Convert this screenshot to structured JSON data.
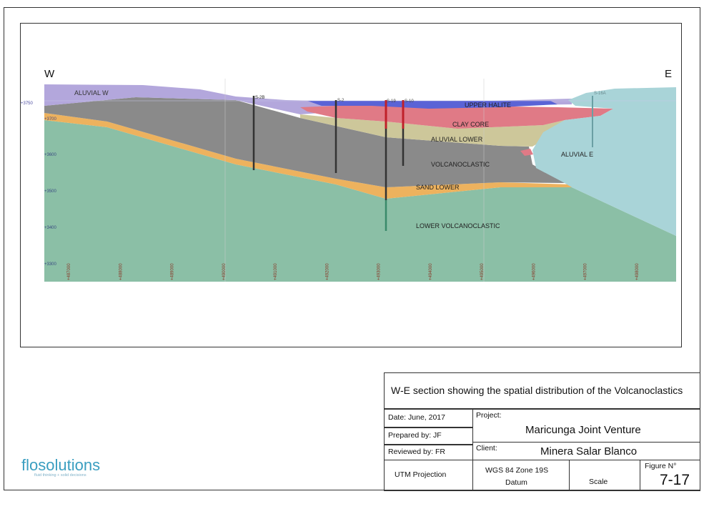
{
  "diagram": {
    "direction_left": "W",
    "direction_right": "E",
    "elevation_labels": [
      "+3750",
      "+3700",
      "+3600",
      "+3500",
      "+3400",
      "+3300"
    ],
    "easting_labels": [
      "+487000",
      "+488000",
      "+489000",
      "+490000",
      "+491000",
      "+492000",
      "+493000",
      "+494000",
      "+495000",
      "+496000",
      "+497000",
      "+498000"
    ],
    "units": [
      {
        "name": "ALUVIAL W",
        "color": "#b3a7dc"
      },
      {
        "name": "UPPER HALITE",
        "color": "#5a63d6"
      },
      {
        "name": "CLAY CORE",
        "color": "#e07a86"
      },
      {
        "name": "ALUVIAL LOWER",
        "color": "#cdc79a"
      },
      {
        "name": "VOLCANOCLASTIC",
        "color": "#8a8a8a"
      },
      {
        "name": "SAND LOWER",
        "color": "#edb25e"
      },
      {
        "name": "LOWER VOLCANOCLASTIC",
        "color": "#8bbfa6"
      },
      {
        "name": "ALUVIAL E",
        "color": "#a9d4d8"
      }
    ],
    "boreholes": [
      "S-2B",
      "S-2",
      "S-19",
      "S-10",
      "S-16A"
    ]
  },
  "title_block": {
    "title": "W-E section showing the spatial distribution of the Volcanoclastics",
    "date": "Date: June, 2017",
    "prepared_by": "Prepared by:  JF",
    "reviewed_by": "Reviewed by:   FR",
    "project_label": "Project:",
    "project": "Maricunga Joint Venture",
    "client_label": "Client:",
    "client": "Minera Salar Blanco",
    "projection": "UTM Projection",
    "datum_line1": "WGS 84 Zone 19S",
    "datum_line2": "Datum",
    "scale": "Scale",
    "figure_label": "Figure N°",
    "figure_number": "7-17"
  },
  "logo": {
    "word": "flosolutions",
    "tagline": "fluid thinking + solid decisions"
  }
}
